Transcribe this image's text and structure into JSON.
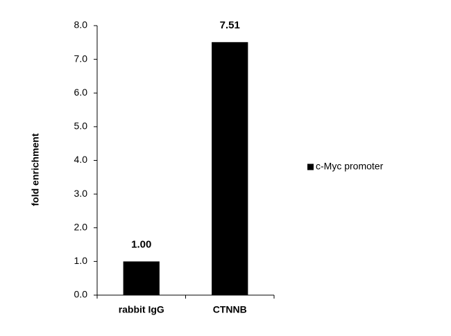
{
  "chart_data": {
    "type": "bar",
    "y_label": "fold enrichment",
    "categories": [
      "rabbit IgG",
      "CTNNB"
    ],
    "series": [
      {
        "name": "c-Myc promoter",
        "color": "#000000",
        "values": [
          1.0,
          7.51
        ],
        "value_labels": [
          "1.00",
          "7.51"
        ]
      }
    ],
    "ylim": [
      0,
      8
    ],
    "yticks": [
      {
        "value": 0,
        "label": "0.0"
      },
      {
        "value": 1,
        "label": "1.0"
      },
      {
        "value": 2,
        "label": "2.0"
      },
      {
        "value": 3,
        "label": "3.0"
      },
      {
        "value": 4,
        "label": "4.0"
      },
      {
        "value": 5,
        "label": "5.0"
      },
      {
        "value": 6,
        "label": "6.0"
      },
      {
        "value": 7,
        "label": "7.0"
      },
      {
        "value": 8,
        "label": "8.0"
      }
    ],
    "grid": false,
    "legend": "right"
  }
}
